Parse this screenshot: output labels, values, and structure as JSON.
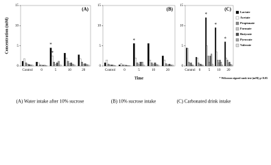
{
  "chart_data": [
    {
      "type": "bar",
      "panel": "(A)",
      "caption": "(A) Water intake after 10% sucrose",
      "ylabel": "Concentration (mM)",
      "categories": [
        "Control",
        "0",
        "5",
        "10",
        "20"
      ],
      "ylim": [
        0,
        15
      ],
      "yticks": [
        0,
        5,
        10,
        15
      ],
      "legend": false,
      "series": [
        {
          "color": "#000000",
          "values": [
            1.2,
            1.0,
            4.5,
            3.2,
            2.8
          ]
        },
        {
          "color": "#ffffff",
          "values": [
            1.8,
            0.8,
            2.5,
            2.0,
            1.8
          ]
        },
        {
          "color": "#8a8a8a",
          "values": [
            0.8,
            0.3,
            1.0,
            1.2,
            1.0
          ]
        },
        {
          "color": "#c8c8c8",
          "values": [
            0.5,
            0.2,
            0.5,
            0.6,
            0.5
          ]
        },
        {
          "color": "#505050",
          "values": [
            0.4,
            0.2,
            0.8,
            0.8,
            0.6
          ]
        },
        {
          "color": "#a8a8a8",
          "values": [
            0.3,
            0.2,
            1.2,
            0.5,
            0.4
          ]
        },
        {
          "color": "#e0e0e0",
          "values": [
            0.2,
            0.1,
            0.3,
            0.3,
            0.3
          ]
        }
      ],
      "annotations": [
        {
          "text": "*",
          "series": "Lactate",
          "category": "5"
        },
        {
          "text": "*",
          "series": "Acetate",
          "category": "5"
        }
      ]
    },
    {
      "type": "bar",
      "panel": "(B)",
      "caption": "(B) 10% sucrose intake",
      "xlabel": "Time",
      "categories": [
        "Control",
        "0",
        "5",
        "10",
        "20"
      ],
      "ylim": [
        0,
        15
      ],
      "yticks": [
        0,
        5,
        10,
        15
      ],
      "legend": false,
      "series": [
        {
          "color": "#000000",
          "values": [
            0.8,
            0.3,
            5.6,
            5.6,
            2.5
          ]
        },
        {
          "color": "#ffffff",
          "values": [
            1.5,
            0.6,
            2.0,
            1.5,
            1.5
          ]
        },
        {
          "color": "#8a8a8a",
          "values": [
            0.5,
            0.3,
            0.8,
            0.8,
            0.6
          ]
        },
        {
          "color": "#c8c8c8",
          "values": [
            0.3,
            0.2,
            0.4,
            0.4,
            0.3
          ]
        },
        {
          "color": "#505050",
          "values": [
            0.3,
            0.2,
            1.0,
            0.8,
            0.5
          ]
        },
        {
          "color": "#a8a8a8",
          "values": [
            0.2,
            0.1,
            1.0,
            0.4,
            0.3
          ]
        },
        {
          "color": "#e0e0e0",
          "values": [
            0.1,
            0.1,
            0.2,
            0.2,
            0.2
          ]
        }
      ],
      "annotations": [
        {
          "text": "*",
          "series": "Lactate",
          "category": "5"
        }
      ]
    },
    {
      "type": "bar",
      "panel": "(C)",
      "caption": "(C) Carbonated drink intake",
      "note": "* Wilcoxon signed rank test (mM) p<0.05",
      "categories": [
        "Control",
        "0",
        "5",
        "10",
        "20"
      ],
      "ylim": [
        0,
        15
      ],
      "yticks": [
        0,
        5,
        10,
        15
      ],
      "legend": "right",
      "series": [
        {
          "name": "Lactate",
          "color": "#000000",
          "values": [
            4.5,
            2.2,
            12,
            9.5,
            6.0
          ]
        },
        {
          "name": "Acetate",
          "color": "#ffffff",
          "values": [
            4.3,
            2.0,
            5.0,
            3.5,
            2.0
          ]
        },
        {
          "name": "Propionate",
          "color": "#8a8a8a",
          "values": [
            1.0,
            0.8,
            2.5,
            1.5,
            1.5
          ]
        },
        {
          "name": "Formate",
          "color": "#c8c8c8",
          "values": [
            0.6,
            0.5,
            1.0,
            0.8,
            0.7
          ]
        },
        {
          "name": "Butyrate",
          "color": "#505050",
          "values": [
            0.8,
            0.5,
            2.5,
            1.5,
            1.0
          ]
        },
        {
          "name": "Pyruvate",
          "color": "#a8a8a8",
          "values": [
            0.3,
            0.3,
            3.0,
            1.0,
            0.5
          ]
        },
        {
          "name": "Valerate",
          "color": "#e0e0e0",
          "values": [
            0.2,
            0.2,
            0.5,
            0.3,
            0.3
          ]
        }
      ],
      "annotations": [
        {
          "text": "*",
          "series": "Lactate",
          "category": "5"
        },
        {
          "text": "*",
          "series": "Lactate",
          "category": "10"
        },
        {
          "text": "*",
          "series": "Lactate",
          "category": "20"
        }
      ]
    }
  ]
}
